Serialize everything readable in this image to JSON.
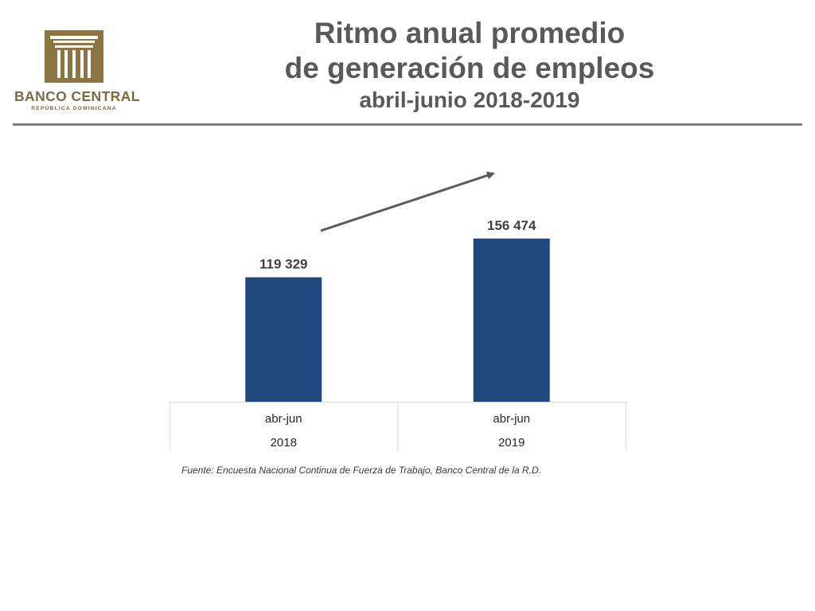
{
  "logo": {
    "name": "BANCO CENTRAL",
    "subtitle": "REPÚBLICA DOMINICANA",
    "color": "#8a7543"
  },
  "title": {
    "line1": "Ritmo anual promedio",
    "line2": "de generación de empleos",
    "subtitle": "abril-junio 2018-2019"
  },
  "chart_data": {
    "type": "bar",
    "categories": [
      {
        "period": "abr-jun",
        "year": "2018"
      },
      {
        "period": "abr-jun",
        "year": "2019"
      }
    ],
    "values": [
      119329,
      156474
    ],
    "data_labels": [
      "119 329",
      "156 474"
    ],
    "ylim": [
      0,
      180000
    ],
    "grid": false,
    "legend": "none",
    "bar_color": "#1f497d",
    "annotation": "upward-trend-arrow"
  },
  "source": "Fuente: Encuesta Nacional Continua de Fuerza de Trabajo, Banco Central de la R.D."
}
